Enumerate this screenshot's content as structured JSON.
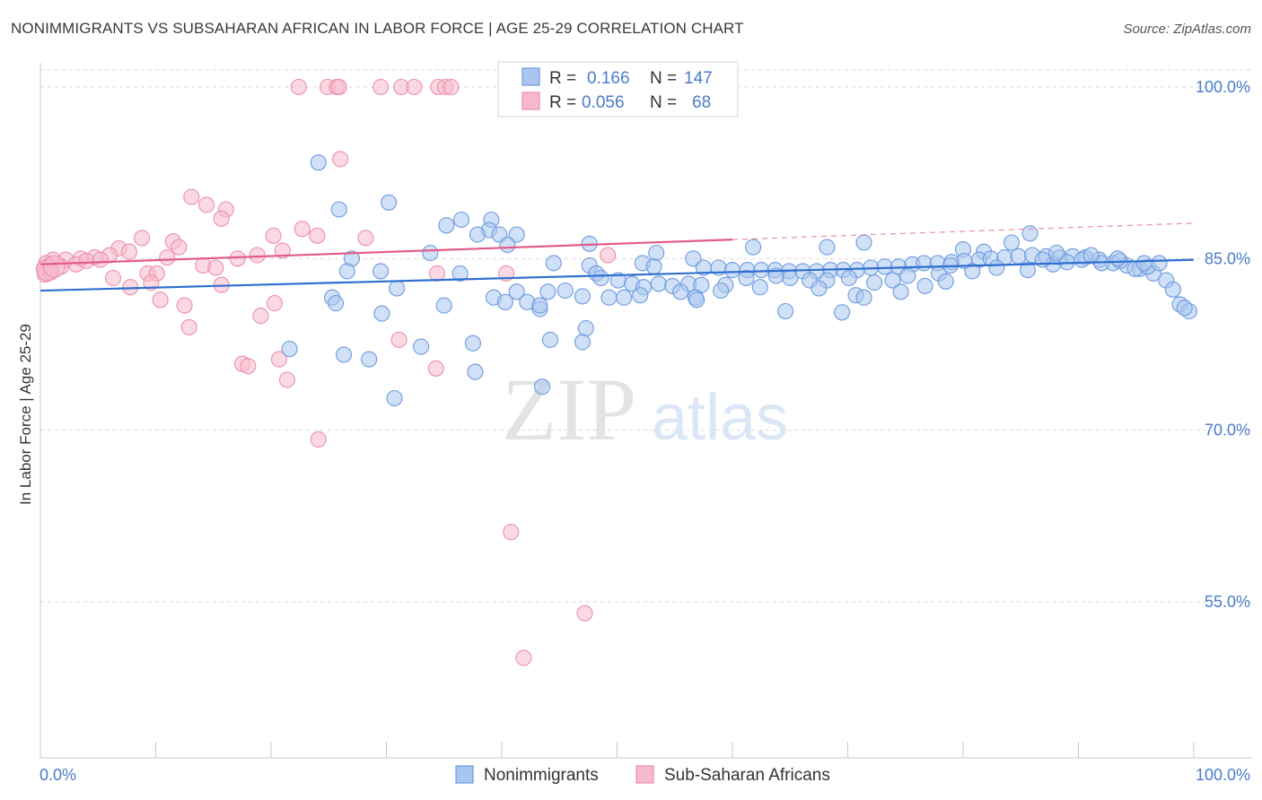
{
  "title": "NONIMMIGRANTS VS SUBSAHARAN AFRICAN IN LABOR FORCE | AGE 25-29 CORRELATION CHART",
  "source": "Source: ZipAtlas.com",
  "watermark": {
    "zip": "ZIP",
    "atlas": "atlas"
  },
  "colors": {
    "blue_fill": "#a9c6ee",
    "blue_stroke": "#6d9be0",
    "blue_line": "#2f6fcf",
    "pink_fill": "#f7b9cb",
    "pink_stroke": "#ec8fab",
    "pink_line": "#e05b8a",
    "grid": "#d9d9d9",
    "label": "#4a7cc9"
  },
  "stats_box": {
    "rows": [
      {
        "r_label": "R =",
        "r_value": "0.166",
        "n_label": "N =",
        "n_value": "147"
      },
      {
        "r_label": "R =",
        "r_value": "0.056",
        "n_label": "N =",
        "n_value": "68"
      }
    ]
  },
  "chart_data": {
    "type": "scatter",
    "xlabel": "",
    "ylabel": "In Labor Force | Age 25-29",
    "xlim": [
      0,
      100
    ],
    "ylim": [
      40,
      101.5
    ],
    "x_tick_labels": [
      {
        "value": 0,
        "label": "0.0%"
      },
      {
        "value": 100,
        "label": "100.0%"
      }
    ],
    "y_tick_labels": [
      {
        "value": 100,
        "label": "100.0%"
      },
      {
        "value": 85,
        "label": "85.0%"
      },
      {
        "value": 70,
        "label": "70.0%"
      },
      {
        "value": 55,
        "label": "55.0%"
      }
    ],
    "legend": {
      "placement": "bottom",
      "entries": [
        "Nonimmigrants",
        "Sub-Saharan Africans"
      ]
    },
    "series": [
      {
        "name": "Nonimmigrants",
        "trend": {
          "x": [
            0,
            100
          ],
          "y": [
            82.2,
            84.9
          ]
        },
        "points": [
          [
            24.1,
            93.4
          ],
          [
            25.9,
            89.3
          ],
          [
            30.2,
            89.9
          ],
          [
            35.2,
            87.9
          ],
          [
            36.5,
            88.4
          ],
          [
            39.1,
            88.4
          ],
          [
            38.9,
            87.5
          ],
          [
            39.8,
            87.1
          ],
          [
            37.9,
            87.1
          ],
          [
            41.3,
            87.1
          ],
          [
            40.5,
            86.2
          ],
          [
            47.6,
            86.3
          ],
          [
            53.4,
            85.5
          ],
          [
            61.8,
            86.0
          ],
          [
            68.2,
            86.0
          ],
          [
            71.4,
            86.4
          ],
          [
            84.2,
            86.4
          ],
          [
            85.8,
            87.2
          ],
          [
            81.8,
            85.6
          ],
          [
            80.0,
            85.8
          ],
          [
            27.0,
            85.0
          ],
          [
            33.8,
            85.5
          ],
          [
            36.4,
            83.7
          ],
          [
            26.6,
            83.9
          ],
          [
            29.5,
            83.9
          ],
          [
            44.5,
            84.6
          ],
          [
            47.6,
            84.4
          ],
          [
            48.2,
            83.7
          ],
          [
            52.2,
            84.6
          ],
          [
            53.2,
            84.3
          ],
          [
            56.6,
            85.0
          ],
          [
            57.5,
            84.2
          ],
          [
            58.8,
            84.2
          ],
          [
            60.0,
            84.0
          ],
          [
            61.3,
            84.0
          ],
          [
            62.5,
            84.0
          ],
          [
            63.7,
            84.0
          ],
          [
            64.9,
            83.9
          ],
          [
            66.1,
            83.9
          ],
          [
            67.3,
            83.9
          ],
          [
            68.5,
            84.0
          ],
          [
            69.6,
            84.0
          ],
          [
            70.8,
            84.0
          ],
          [
            72.0,
            84.2
          ],
          [
            73.2,
            84.3
          ],
          [
            74.4,
            84.3
          ],
          [
            75.6,
            84.5
          ],
          [
            76.6,
            84.6
          ],
          [
            77.8,
            84.6
          ],
          [
            79.0,
            84.7
          ],
          [
            80.1,
            84.8
          ],
          [
            81.4,
            84.9
          ],
          [
            82.4,
            85.0
          ],
          [
            83.6,
            85.1
          ],
          [
            84.8,
            85.2
          ],
          [
            86.0,
            85.3
          ],
          [
            87.2,
            85.2
          ],
          [
            88.4,
            85.1
          ],
          [
            89.5,
            85.2
          ],
          [
            90.6,
            85.1
          ],
          [
            91.8,
            84.9
          ],
          [
            93.0,
            84.6
          ],
          [
            94.2,
            84.4
          ],
          [
            95.3,
            84.1
          ],
          [
            96.5,
            83.7
          ],
          [
            97.6,
            83.1
          ],
          [
            98.2,
            82.3
          ],
          [
            98.8,
            81.0
          ],
          [
            99.6,
            80.4
          ],
          [
            99.2,
            80.7
          ],
          [
            48.6,
            83.3
          ],
          [
            50.1,
            83.1
          ],
          [
            51.3,
            82.8
          ],
          [
            52.3,
            82.5
          ],
          [
            53.6,
            82.8
          ],
          [
            54.8,
            82.6
          ],
          [
            56.2,
            82.8
          ],
          [
            57.3,
            82.7
          ],
          [
            59.4,
            82.7
          ],
          [
            61.2,
            83.3
          ],
          [
            63.8,
            83.5
          ],
          [
            65.0,
            83.3
          ],
          [
            66.7,
            83.1
          ],
          [
            68.2,
            83.1
          ],
          [
            70.1,
            83.3
          ],
          [
            72.3,
            82.9
          ],
          [
            73.9,
            83.1
          ],
          [
            75.2,
            83.5
          ],
          [
            77.9,
            83.7
          ],
          [
            80.8,
            83.9
          ],
          [
            55.5,
            82.1
          ],
          [
            52.0,
            81.8
          ],
          [
            56.8,
            81.6
          ],
          [
            49.3,
            81.6
          ],
          [
            50.6,
            81.6
          ],
          [
            47.0,
            81.7
          ],
          [
            45.5,
            82.2
          ],
          [
            44.0,
            82.1
          ],
          [
            41.3,
            82.1
          ],
          [
            39.3,
            81.6
          ],
          [
            42.2,
            81.2
          ],
          [
            43.3,
            80.6
          ],
          [
            56.9,
            81.4
          ],
          [
            59.0,
            82.2
          ],
          [
            62.4,
            82.5
          ],
          [
            67.5,
            82.4
          ],
          [
            70.7,
            81.8
          ],
          [
            74.6,
            82.1
          ],
          [
            76.7,
            82.6
          ],
          [
            78.5,
            83.0
          ],
          [
            25.3,
            81.6
          ],
          [
            25.6,
            81.1
          ],
          [
            30.9,
            82.4
          ],
          [
            29.6,
            80.2
          ],
          [
            35.0,
            80.9
          ],
          [
            40.3,
            81.2
          ],
          [
            43.3,
            80.9
          ],
          [
            64.6,
            80.4
          ],
          [
            69.5,
            80.3
          ],
          [
            71.4,
            81.6
          ],
          [
            21.6,
            77.1
          ],
          [
            26.3,
            76.6
          ],
          [
            28.5,
            76.2
          ],
          [
            33.0,
            77.3
          ],
          [
            37.5,
            77.6
          ],
          [
            37.7,
            75.1
          ],
          [
            44.2,
            77.9
          ],
          [
            47.0,
            77.7
          ],
          [
            47.3,
            78.9
          ],
          [
            43.5,
            73.8
          ],
          [
            30.7,
            72.8
          ],
          [
            78.9,
            84.4
          ],
          [
            82.9,
            84.2
          ],
          [
            85.6,
            84.0
          ],
          [
            87.8,
            84.5
          ],
          [
            89.0,
            84.7
          ],
          [
            90.3,
            84.9
          ],
          [
            92.0,
            84.6
          ],
          [
            93.6,
            84.8
          ],
          [
            94.9,
            84.1
          ],
          [
            96.0,
            84.3
          ],
          [
            97.0,
            84.6
          ],
          [
            86.9,
            84.9
          ],
          [
            88.1,
            85.5
          ],
          [
            91.1,
            85.3
          ],
          [
            93.4,
            85.0
          ],
          [
            95.7,
            84.6
          ]
        ]
      },
      {
        "name": "Sub-Saharan Africans",
        "trend": {
          "x": [
            0,
            100
          ],
          "y": [
            84.5,
            88.1
          ],
          "solid_until": 60
        },
        "points": [
          [
            22.4,
            100
          ],
          [
            24.9,
            100
          ],
          [
            25.7,
            100
          ],
          [
            25.9,
            100
          ],
          [
            29.5,
            100
          ],
          [
            31.3,
            100
          ],
          [
            32.4,
            100
          ],
          [
            34.5,
            100
          ],
          [
            35.1,
            100
          ],
          [
            35.6,
            100
          ],
          [
            59.5,
            100
          ],
          [
            26.0,
            93.7
          ],
          [
            13.1,
            90.4
          ],
          [
            14.4,
            89.7
          ],
          [
            16.1,
            89.3
          ],
          [
            15.7,
            88.5
          ],
          [
            22.7,
            87.6
          ],
          [
            20.2,
            87.0
          ],
          [
            24.0,
            87.0
          ],
          [
            28.2,
            86.8
          ],
          [
            8.8,
            86.8
          ],
          [
            11.5,
            86.5
          ],
          [
            6.8,
            85.9
          ],
          [
            7.7,
            85.6
          ],
          [
            6.0,
            85.3
          ],
          [
            4.7,
            85.1
          ],
          [
            3.5,
            85.0
          ],
          [
            2.2,
            84.9
          ],
          [
            1.1,
            84.9
          ],
          [
            0.5,
            84.6
          ],
          [
            0.3,
            84.1
          ],
          [
            0.4,
            83.6
          ],
          [
            0.9,
            83.8
          ],
          [
            1.8,
            84.3
          ],
          [
            3.1,
            84.5
          ],
          [
            4.0,
            84.8
          ],
          [
            5.2,
            84.9
          ],
          [
            11.0,
            85.1
          ],
          [
            12.0,
            86.0
          ],
          [
            17.1,
            85.0
          ],
          [
            18.8,
            85.3
          ],
          [
            21.0,
            85.7
          ],
          [
            49.2,
            85.3
          ],
          [
            14.1,
            84.4
          ],
          [
            15.2,
            84.2
          ],
          [
            9.3,
            83.7
          ],
          [
            10.1,
            83.7
          ],
          [
            6.3,
            83.3
          ],
          [
            7.8,
            82.5
          ],
          [
            9.6,
            82.9
          ],
          [
            15.7,
            82.7
          ],
          [
            20.3,
            81.1
          ],
          [
            10.4,
            81.4
          ],
          [
            12.5,
            80.9
          ],
          [
            19.1,
            80.0
          ],
          [
            12.9,
            79.0
          ],
          [
            31.1,
            77.9
          ],
          [
            17.5,
            75.8
          ],
          [
            18.0,
            75.6
          ],
          [
            20.7,
            76.2
          ],
          [
            21.4,
            74.4
          ],
          [
            34.3,
            75.4
          ],
          [
            24.1,
            69.2
          ],
          [
            34.4,
            83.7
          ],
          [
            40.4,
            83.7
          ],
          [
            40.8,
            61.1
          ],
          [
            47.2,
            54.0
          ],
          [
            41.9,
            50.1
          ]
        ]
      }
    ]
  }
}
